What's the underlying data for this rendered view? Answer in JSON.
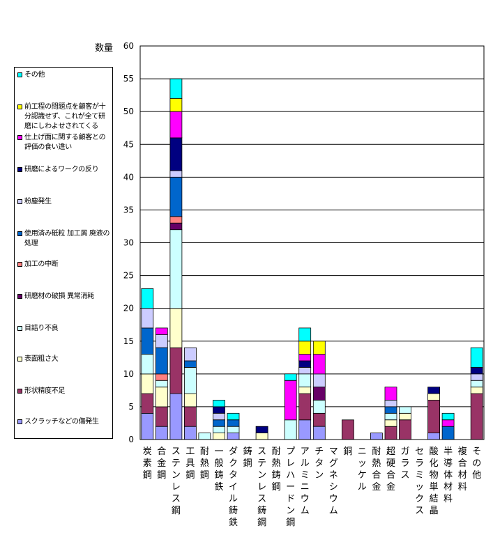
{
  "chart_data": {
    "type": "bar",
    "stacked": true,
    "ylabel": "数量",
    "ylim": [
      0,
      60
    ],
    "yticks": [
      0,
      5,
      10,
      15,
      20,
      25,
      30,
      35,
      40,
      45,
      50,
      55,
      60
    ],
    "grid": true,
    "legend_position": "left",
    "categories": [
      "炭素鋼",
      "合金鋼",
      "ステンレス鋼",
      "工具鋼",
      "耐熱鋼",
      "一般鋳鉄",
      "ダクタイル鋳鉄",
      "鋳鋼",
      "ステンレス鋳鋼",
      "耐熱鋳鋼",
      "プレハードン鋼",
      "アルミニウム",
      "チタン",
      "マグネシウム",
      "銅",
      "ニッケル",
      "耐熱合金",
      "超硬合金",
      "ガラス",
      "セラミックス",
      "酸化物単結晶",
      "半導体材料",
      "複合材料",
      "その他"
    ],
    "series": [
      {
        "name": "スクラッチなどの傷発生",
        "color": "#9999ff",
        "values": [
          4,
          2,
          7,
          2,
          0,
          0,
          1,
          0,
          0,
          0,
          0,
          3,
          2,
          0,
          0,
          0,
          1,
          0,
          0,
          0,
          1,
          0,
          0,
          0
        ]
      },
      {
        "name": "形状精度不足",
        "color": "#993366",
        "values": [
          3,
          3,
          7,
          3,
          0,
          0,
          0,
          0,
          0,
          0,
          0,
          4,
          2,
          0,
          3,
          0,
          0,
          2,
          3,
          0,
          5,
          0,
          0,
          7
        ]
      },
      {
        "name": "表面粗さ大",
        "color": "#ffffcc",
        "values": [
          3,
          3,
          6,
          2,
          0,
          1,
          0,
          0,
          1,
          0,
          0,
          1,
          0,
          0,
          0,
          0,
          0,
          1,
          1,
          0,
          1,
          0,
          0,
          1
        ]
      },
      {
        "name": "目詰り不良",
        "color": "#ccffff",
        "values": [
          3,
          1,
          12,
          4,
          1,
          1,
          1,
          0,
          0,
          0,
          3,
          2,
          2,
          0,
          0,
          0,
          0,
          1,
          1,
          0,
          0,
          0,
          0,
          1
        ]
      },
      {
        "name": "研磨材の破損 異常消耗",
        "color": "#660066",
        "values": [
          0,
          0,
          1,
          0,
          0,
          0,
          0,
          0,
          0,
          0,
          0,
          0,
          2,
          0,
          0,
          0,
          0,
          0,
          0,
          0,
          0,
          0,
          0,
          0
        ]
      },
      {
        "name": "加工の中断",
        "color": "#ff8080",
        "values": [
          0,
          1,
          1,
          0,
          0,
          0,
          0,
          0,
          0,
          0,
          0,
          0,
          0,
          0,
          0,
          0,
          0,
          0,
          0,
          0,
          0,
          0,
          0,
          0
        ]
      },
      {
        "name": "使用済み砥粒 加工屑 廃液の処理",
        "color": "#0066cc",
        "values": [
          4,
          4,
          6,
          1,
          0,
          1,
          1,
          0,
          0,
          0,
          0,
          0,
          0,
          0,
          0,
          0,
          0,
          1,
          0,
          0,
          0,
          2,
          0,
          0
        ]
      },
      {
        "name": "粉塵発生",
        "color": "#ccccff",
        "values": [
          3,
          2,
          1,
          2,
          0,
          1,
          0,
          0,
          0,
          0,
          0,
          1,
          2,
          0,
          0,
          0,
          0,
          1,
          0,
          0,
          0,
          0,
          0,
          1
        ]
      },
      {
        "name": "研磨によるワークの反り",
        "color": "#000080",
        "values": [
          0,
          0,
          5,
          0,
          0,
          1,
          0,
          0,
          1,
          0,
          0,
          1,
          0,
          0,
          0,
          0,
          0,
          0,
          0,
          0,
          1,
          0,
          0,
          1
        ]
      },
      {
        "name": "仕上げ面に関する顧客との評価の食い違い",
        "color": "#ff00ff",
        "values": [
          0,
          1,
          4,
          0,
          0,
          0,
          0,
          0,
          0,
          0,
          6,
          1,
          3,
          0,
          0,
          0,
          0,
          2,
          0,
          0,
          0,
          1,
          0,
          0
        ]
      },
      {
        "name": "前工程の問題点を顧客が十分認識せず、これが全て研磨にしわよせされてくる",
        "color": "#ffff00",
        "values": [
          0,
          0,
          2,
          0,
          0,
          0,
          0,
          0,
          0,
          0,
          0,
          2,
          2,
          0,
          0,
          0,
          0,
          0,
          0,
          0,
          0,
          0,
          0,
          0
        ]
      },
      {
        "name": "その他",
        "color": "#00ffff",
        "values": [
          3,
          0,
          3,
          0,
          0,
          1,
          1,
          0,
          0,
          0,
          1,
          2,
          0,
          0,
          0,
          0,
          0,
          0,
          0,
          0,
          0,
          1,
          0,
          3
        ]
      }
    ],
    "legend_entries": [
      {
        "label": "その他",
        "color": "#00ffff"
      },
      {
        "label": "前工程の問題点を顧客が十分認識せず、これが全て研磨にしわよせされてくる",
        "color": "#ffff00"
      },
      {
        "label": "仕上げ面に関する顧客との評価の食い違い",
        "color": "#ff00ff"
      },
      {
        "label": "研磨によるワークの反り",
        "color": "#000080"
      },
      {
        "label": "粉塵発生",
        "color": "#ccccff"
      },
      {
        "label": "使用済み砥粒 加工屑 廃液の処理",
        "color": "#0066cc"
      },
      {
        "label": "加工の中断",
        "color": "#ff8080"
      },
      {
        "label": "研磨材の破損 異常消耗",
        "color": "#660066"
      },
      {
        "label": "目詰り不良",
        "color": "#ccffff"
      },
      {
        "label": "表面粗さ大",
        "color": "#ffffcc"
      },
      {
        "label": "形状精度不足",
        "color": "#993366"
      },
      {
        "label": "スクラッチなどの傷発生",
        "color": "#9999ff"
      }
    ]
  }
}
